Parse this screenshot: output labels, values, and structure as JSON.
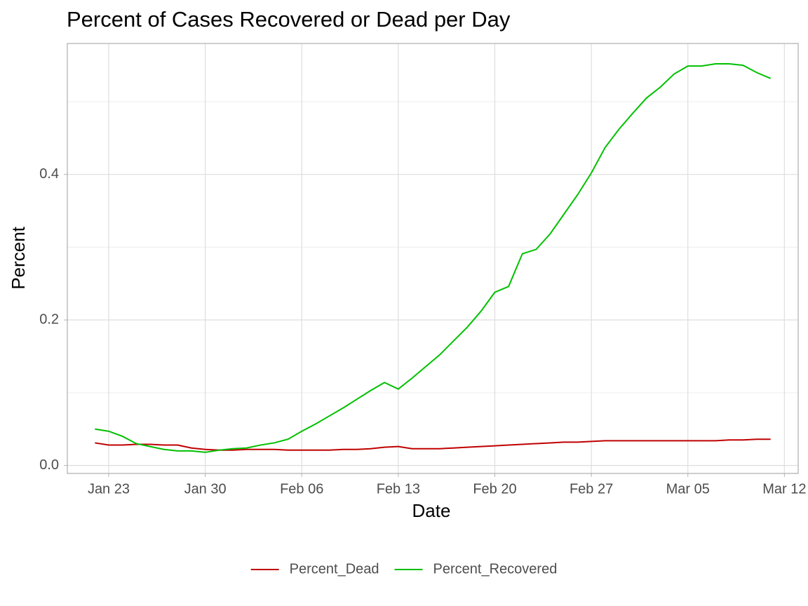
{
  "chart_data": {
    "type": "line",
    "title": "Percent of Cases Recovered or Dead per Day",
    "x_label": "Date",
    "y_label": "Percent",
    "x": [
      "Jan 22",
      "Jan 23",
      "Jan 24",
      "Jan 25",
      "Jan 26",
      "Jan 27",
      "Jan 28",
      "Jan 29",
      "Jan 30",
      "Jan 31",
      "Feb 01",
      "Feb 02",
      "Feb 03",
      "Feb 04",
      "Feb 05",
      "Feb 06",
      "Feb 07",
      "Feb 08",
      "Feb 09",
      "Feb 10",
      "Feb 11",
      "Feb 12",
      "Feb 13",
      "Feb 14",
      "Feb 15",
      "Feb 16",
      "Feb 17",
      "Feb 18",
      "Feb 19",
      "Feb 20",
      "Feb 21",
      "Feb 22",
      "Feb 23",
      "Feb 24",
      "Feb 25",
      "Feb 26",
      "Feb 27",
      "Feb 28",
      "Feb 29",
      "Mar 01",
      "Mar 02",
      "Mar 03",
      "Mar 04",
      "Mar 05",
      "Mar 06",
      "Mar 07",
      "Mar 08",
      "Mar 09",
      "Mar 10",
      "Mar 11"
    ],
    "series": [
      {
        "name": "Percent_Dead",
        "color": "#c00000",
        "values": [
          0.031,
          0.028,
          0.028,
          0.029,
          0.029,
          0.028,
          0.028,
          0.024,
          0.022,
          0.021,
          0.021,
          0.022,
          0.022,
          0.022,
          0.021,
          0.021,
          0.021,
          0.021,
          0.022,
          0.022,
          0.023,
          0.025,
          0.026,
          0.023,
          0.023,
          0.023,
          0.024,
          0.025,
          0.026,
          0.027,
          0.028,
          0.029,
          0.03,
          0.031,
          0.032,
          0.032,
          0.033,
          0.034,
          0.034,
          0.034,
          0.034,
          0.034,
          0.034,
          0.034,
          0.034,
          0.034,
          0.035,
          0.035,
          0.036,
          0.036
        ]
      },
      {
        "name": "Percent_Recovered",
        "color": "#00c000",
        "values": [
          0.05,
          0.047,
          0.04,
          0.03,
          0.026,
          0.022,
          0.02,
          0.02,
          0.018,
          0.021,
          0.023,
          0.024,
          0.028,
          0.031,
          0.036,
          0.047,
          0.057,
          0.068,
          0.079,
          0.091,
          0.103,
          0.114,
          0.105,
          0.12,
          0.136,
          0.152,
          0.171,
          0.19,
          0.212,
          0.238,
          0.246,
          0.291,
          0.297,
          0.318,
          0.345,
          0.372,
          0.402,
          0.437,
          0.462,
          0.484,
          0.505,
          0.52,
          0.538,
          0.549,
          0.549,
          0.552,
          0.552,
          0.55,
          0.54,
          0.532
        ]
      }
    ],
    "xlim": [
      "Jan 20",
      "Mar 13"
    ],
    "xticks": [
      "Jan 23",
      "Jan 30",
      "Feb 06",
      "Feb 13",
      "Feb 20",
      "Feb 27",
      "Mar 05",
      "Mar 12"
    ],
    "ylim": [
      -0.011,
      0.58
    ],
    "yticks": [
      {
        "value": 0,
        "label": "0.0"
      },
      0.2,
      0.4
    ],
    "minor_yticks": [
      0.1,
      0.3,
      0.5
    ],
    "grid": true,
    "legend": "bottom"
  }
}
